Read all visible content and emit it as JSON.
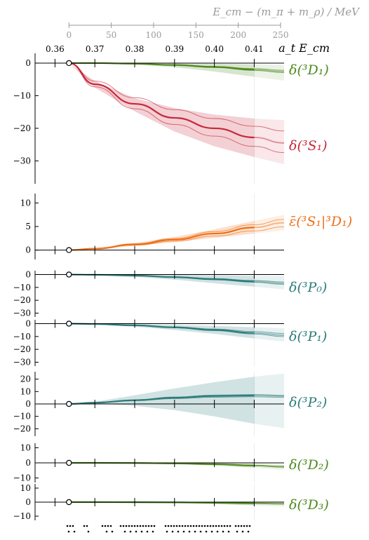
{
  "top_axis": {
    "label": "E_cm − (m_π + m_ρ) / MeV",
    "ticks": [
      "0",
      "50",
      "100",
      "150",
      "200",
      "250"
    ]
  },
  "bottom_axis": {
    "label": "a_t E_cm",
    "ticks": [
      "0.36",
      "0.37",
      "0.38",
      "0.39",
      "0.40",
      "0.41"
    ]
  },
  "chart_data": [
    {
      "type": "line",
      "label": "δ(³D₁)",
      "ylim": [
        -37,
        3
      ],
      "yticks": [
        0,
        -10,
        -20,
        -30
      ],
      "x": [
        0.3635,
        0.37,
        0.38,
        0.39,
        0.4,
        0.41,
        0.4175
      ],
      "series": [
        {
          "name": "δ(³D₁)",
          "values": [
            0,
            0,
            -0.2,
            -0.6,
            -1.2,
            -2.0,
            -2.6
          ],
          "band_lo": [
            0,
            0,
            -0.4,
            -1.3,
            -2.6,
            -4.2,
            -5.4
          ],
          "band_hi": [
            0,
            0,
            -0.05,
            -0.1,
            -0.2,
            -0.4,
            -0.6
          ],
          "color": "#4e8a1f"
        },
        {
          "name": "δ(³S₁)",
          "values": [
            0,
            -6.5,
            -12.5,
            -16.8,
            -20.0,
            -22.8,
            -24.5
          ],
          "band_lo": [
            0,
            -7.5,
            -14.8,
            -21.0,
            -25.5,
            -28.8,
            -31.0
          ],
          "band_hi": [
            0,
            -5.5,
            -10.8,
            -13.8,
            -15.8,
            -17.0,
            -17.5
          ],
          "color": "#c8283c"
        }
      ]
    },
    {
      "type": "line",
      "label": "ε̄(³S₁|³D₁)",
      "ylim": [
        -2,
        12
      ],
      "yticks": [
        10,
        5,
        0
      ],
      "x": [
        0.3635,
        0.37,
        0.38,
        0.39,
        0.4,
        0.41,
        0.4175
      ],
      "series": [
        {
          "name": "ε̄(³S₁|³D₁)",
          "values": [
            0,
            0.3,
            1.2,
            2.2,
            3.5,
            4.8,
            5.8
          ],
          "band_lo": [
            0,
            0.2,
            0.9,
            1.7,
            2.6,
            3.5,
            4.2
          ],
          "band_hi": [
            0,
            0.4,
            1.5,
            2.8,
            4.4,
            6.2,
            7.5
          ],
          "color": "#ee6f16"
        }
      ]
    },
    {
      "type": "line",
      "label": "δ(³P₀)",
      "ylim": [
        -33,
        3
      ],
      "yticks": [
        0,
        -10,
        -20,
        -30
      ],
      "x": [
        0.3635,
        0.37,
        0.38,
        0.39,
        0.4,
        0.41,
        0.4175
      ],
      "series": [
        {
          "name": "δ(³P₀)",
          "values": [
            0,
            -0.2,
            -0.8,
            -2.0,
            -3.6,
            -5.4,
            -6.8
          ],
          "band_lo": [
            0,
            -0.5,
            -1.8,
            -4.0,
            -6.8,
            -9.5,
            -11.5
          ],
          "band_hi": [
            0,
            0,
            -0.1,
            -0.3,
            -0.6,
            -1.0,
            -1.3
          ],
          "color": "#2e7c7b"
        }
      ]
    },
    {
      "type": "line",
      "label": "δ(³P₁)",
      "ylim": [
        -33,
        3
      ],
      "yticks": [
        0,
        -10,
        -20,
        -30
      ],
      "x": [
        0.3635,
        0.37,
        0.38,
        0.39,
        0.4,
        0.41,
        0.4175
      ],
      "series": [
        {
          "name": "δ(³P₁)",
          "values": [
            0,
            -0.3,
            -1.3,
            -2.9,
            -4.9,
            -7.2,
            -9.0
          ],
          "band_lo": [
            0,
            -0.6,
            -2.4,
            -5.0,
            -8.0,
            -11.5,
            -14.0
          ],
          "band_hi": [
            0,
            -0.1,
            -0.4,
            -1.0,
            -1.8,
            -2.8,
            -3.5
          ],
          "color": "#2e7c7b"
        }
      ]
    },
    {
      "type": "line",
      "label": "δ(³P₂)",
      "ylim": [
        -26,
        26
      ],
      "yticks": [
        20,
        10,
        0,
        -10,
        -20
      ],
      "x": [
        0.3635,
        0.37,
        0.38,
        0.39,
        0.4,
        0.41,
        0.4175
      ],
      "series": [
        {
          "name": "δ(³P₂)",
          "values": [
            0,
            1.0,
            3.0,
            5.0,
            6.4,
            6.8,
            6.2
          ],
          "band_lo": [
            0,
            0.3,
            -1.5,
            -5.0,
            -10.0,
            -16.0,
            -19.5
          ],
          "band_hi": [
            0,
            1.8,
            7.0,
            12.5,
            17.5,
            22.0,
            24.5
          ],
          "color": "#2e7c7b"
        }
      ]
    },
    {
      "type": "line",
      "label": "δ(³D₂)",
      "ylim": [
        -13,
        13
      ],
      "yticks": [
        10,
        0,
        -10
      ],
      "x": [
        0.3635,
        0.37,
        0.38,
        0.39,
        0.4,
        0.41,
        0.4175
      ],
      "series": [
        {
          "name": "δ(³D₂)",
          "values": [
            0,
            0,
            -0.1,
            -0.4,
            -0.9,
            -1.8,
            -2.6
          ],
          "band_lo": [
            0,
            0,
            -0.3,
            -0.8,
            -1.8,
            -3.3,
            -4.6
          ],
          "band_hi": [
            0,
            0,
            0,
            -0.1,
            -0.3,
            -0.6,
            -0.9
          ],
          "color": "#4e8a1f"
        }
      ]
    },
    {
      "type": "line",
      "label": "δ(³D₃)",
      "ylim": [
        -13,
        13
      ],
      "yticks": [
        10,
        0,
        -10
      ],
      "x": [
        0.3635,
        0.37,
        0.38,
        0.39,
        0.4,
        0.41,
        0.4175
      ],
      "series": [
        {
          "name": "δ(³D₃)",
          "values": [
            0,
            0,
            -0.05,
            -0.2,
            -0.5,
            -0.9,
            -1.2
          ],
          "band_lo": [
            0,
            0,
            -0.2,
            -0.6,
            -1.3,
            -2.4,
            -3.2
          ],
          "band_hi": [
            0,
            0,
            0.1,
            0.2,
            0.3,
            0.5,
            0.7
          ],
          "color": "#4e8a1f"
        }
      ]
    }
  ]
}
